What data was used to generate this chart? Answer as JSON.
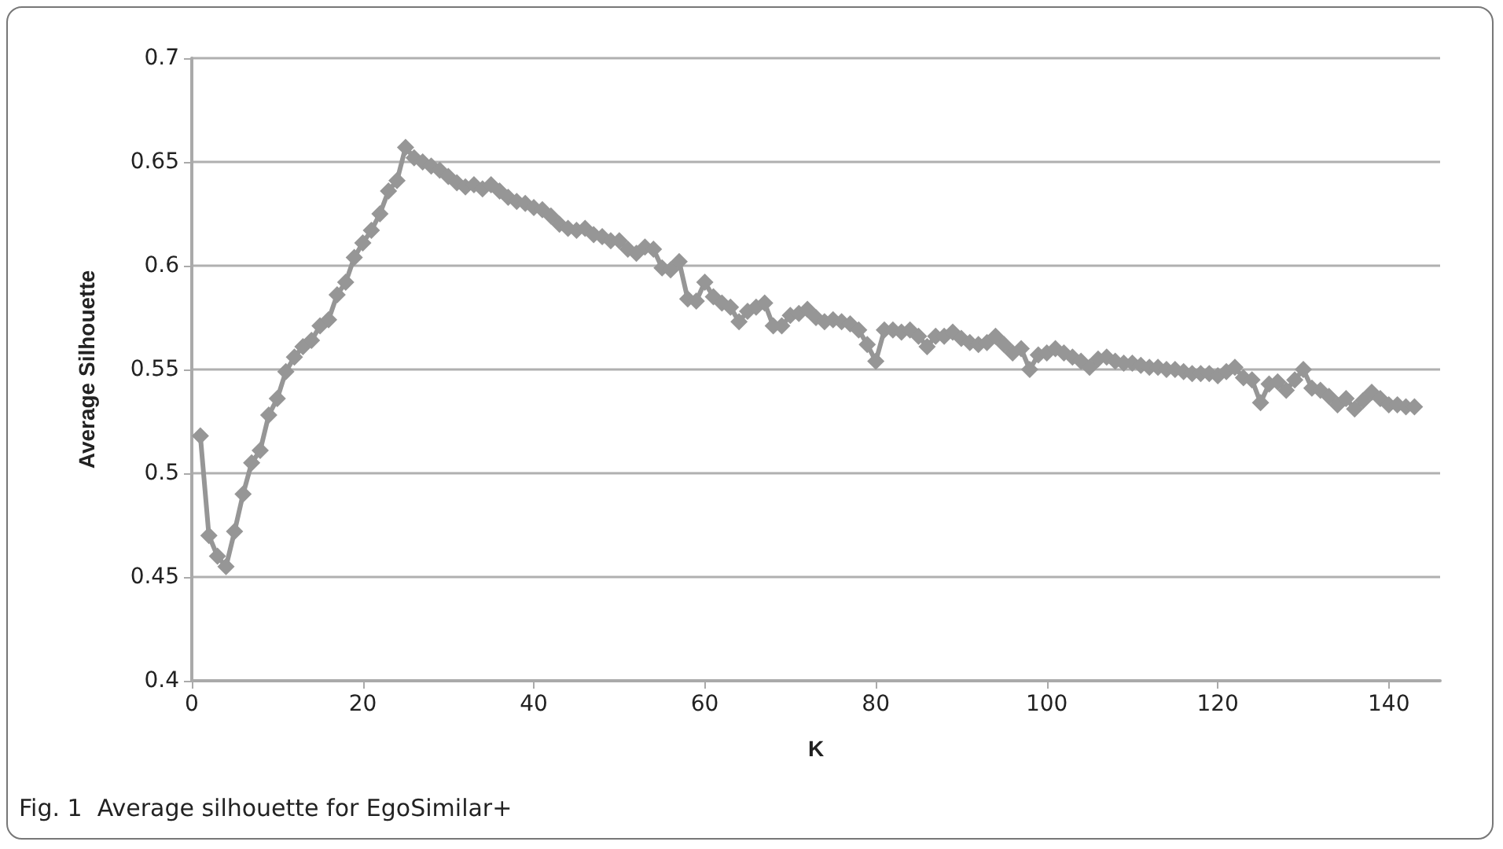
{
  "chart_data": {
    "type": "line",
    "xlabel": "K",
    "ylabel": "Average Silhouette",
    "annotations": [
      "Fig. 1  Average silhouette for EgoSimilar+"
    ],
    "x": [
      1,
      2,
      3,
      4,
      5,
      6,
      7,
      8,
      9,
      10,
      11,
      12,
      13,
      14,
      15,
      16,
      17,
      18,
      19,
      20,
      21,
      22,
      23,
      24,
      25,
      26,
      27,
      28,
      29,
      30,
      31,
      32,
      33,
      34,
      35,
      36,
      37,
      38,
      39,
      40,
      41,
      42,
      43,
      44,
      45,
      46,
      47,
      48,
      49,
      50,
      51,
      52,
      53,
      54,
      55,
      56,
      57,
      58,
      59,
      60,
      61,
      62,
      63,
      64,
      65,
      66,
      67,
      68,
      69,
      70,
      71,
      72,
      73,
      74,
      75,
      76,
      77,
      78,
      79,
      80,
      81,
      82,
      83,
      84,
      85,
      86,
      87,
      88,
      89,
      90,
      91,
      92,
      93,
      94,
      95,
      96,
      97,
      98,
      99,
      100,
      101,
      102,
      103,
      104,
      105,
      106,
      107,
      108,
      109,
      110,
      111,
      112,
      113,
      114,
      115,
      116,
      117,
      118,
      119,
      120,
      121,
      122,
      123,
      124,
      125,
      126,
      127,
      128,
      129,
      130,
      131,
      132,
      133,
      134,
      135,
      136,
      137,
      138,
      139,
      140,
      141,
      142,
      143
    ],
    "series": [
      {
        "color": "#969696",
        "values": [
          0.518,
          0.47,
          0.46,
          0.455,
          0.472,
          0.49,
          0.505,
          0.511,
          0.528,
          0.536,
          0.549,
          0.556,
          0.561,
          0.564,
          0.571,
          0.574,
          0.586,
          0.592,
          0.604,
          0.611,
          0.617,
          0.625,
          0.636,
          0.641,
          0.657,
          0.652,
          0.65,
          0.648,
          0.646,
          0.643,
          0.64,
          0.638,
          0.639,
          0.637,
          0.639,
          0.636,
          0.633,
          0.631,
          0.63,
          0.628,
          0.627,
          0.624,
          0.62,
          0.618,
          0.617,
          0.618,
          0.615,
          0.614,
          0.612,
          0.612,
          0.608,
          0.606,
          0.609,
          0.608,
          0.599,
          0.598,
          0.602,
          0.584,
          0.583,
          0.592,
          0.585,
          0.582,
          0.58,
          0.573,
          0.578,
          0.58,
          0.582,
          0.571,
          0.571,
          0.576,
          0.577,
          0.579,
          0.575,
          0.573,
          0.574,
          0.573,
          0.572,
          0.569,
          0.562,
          0.554,
          0.569,
          0.569,
          0.568,
          0.569,
          0.566,
          0.561,
          0.566,
          0.566,
          0.568,
          0.565,
          0.563,
          0.562,
          0.563,
          0.566,
          0.562,
          0.558,
          0.56,
          0.55,
          0.557,
          0.558,
          0.56,
          0.558,
          0.556,
          0.554,
          0.551,
          0.555,
          0.556,
          0.554,
          0.553,
          0.553,
          0.552,
          0.551,
          0.551,
          0.55,
          0.55,
          0.549,
          0.548,
          0.548,
          0.548,
          0.547,
          0.549,
          0.551,
          0.546,
          0.545,
          0.534,
          0.543,
          0.544,
          0.54,
          0.545,
          0.55,
          0.541,
          0.54,
          0.537,
          0.533,
          0.536,
          0.531,
          0.535,
          0.539,
          0.536,
          0.533,
          0.533,
          0.532,
          0.532
        ]
      }
    ],
    "xlim": [
      0,
      146
    ],
    "xticks": [
      0,
      20,
      40,
      60,
      80,
      100,
      120,
      140
    ],
    "ylim": [
      0.4,
      0.7
    ],
    "yticks": [
      0.4,
      0.45,
      0.5,
      0.55,
      0.6,
      0.65,
      0.7
    ],
    "grid": "y",
    "marker": "diamond",
    "line_style": "solid"
  }
}
